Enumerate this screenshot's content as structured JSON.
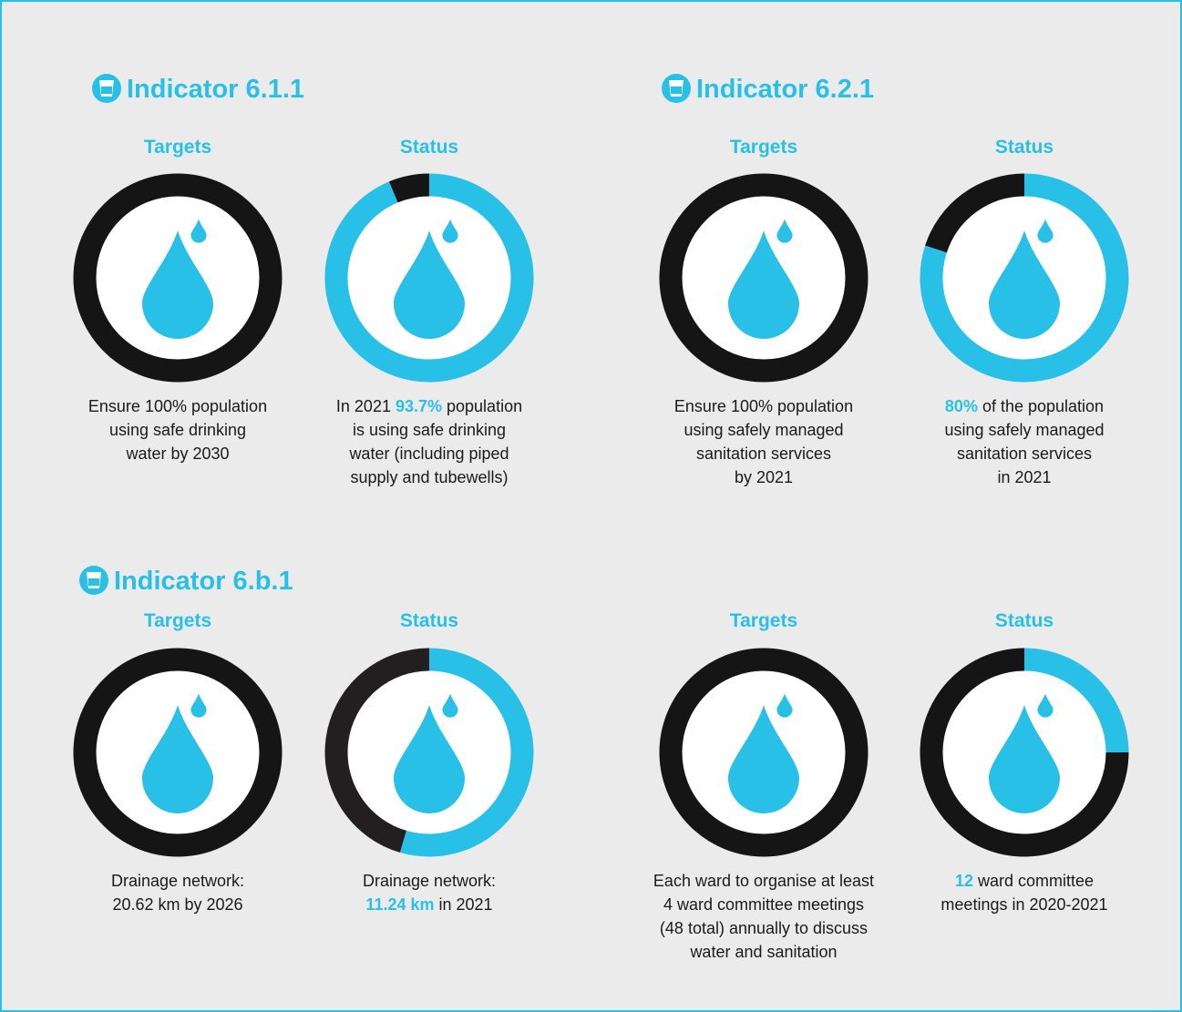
{
  "panels": [
    {
      "heading": "Indicator 6.1.1",
      "target": {
        "title": "Targets",
        "lines": [
          [
            "Ensure ",
            {
              "value": 100,
              "label": "100%"
            },
            " population"
          ],
          [
            "using safe drinking"
          ],
          [
            "water by 2030"
          ]
        ]
      },
      "status": {
        "title": "Status",
        "lines": [
          [
            "In 2021 ",
            {
              "value": 93.7,
              "label": "93.7%"
            },
            " population"
          ],
          [
            "is using safe drinking"
          ],
          [
            "water (including piped"
          ],
          [
            "supply and tubewells)"
          ]
        ]
      }
    },
    {
      "heading": "Indicator 6.2.1",
      "target": {
        "title": "Targets",
        "lines": [
          [
            "Ensure ",
            {
              "value": 100,
              "label": "100%"
            },
            " population"
          ],
          [
            "using safely managed"
          ],
          [
            "sanitation services"
          ],
          [
            "by 2021"
          ]
        ]
      },
      "status": {
        "title": "Status",
        "lines": [
          [
            {
              "value": 80,
              "label": "80%"
            },
            " of the population"
          ],
          [
            "using safely managed"
          ],
          [
            "sanitation services"
          ],
          [
            "in 2021"
          ]
        ]
      }
    },
    {
      "heading": "Indicator 6.b.1",
      "target": {
        "title": "Targets",
        "lines": [
          [
            "Drainage network:"
          ],
          [
            {
              "value": 20.62,
              "label": "20.62 km"
            },
            " by 2026"
          ]
        ]
      },
      "status": {
        "title": "Status",
        "lines": [
          [
            "Drainage network:"
          ],
          [
            {
              "value": 11.24,
              "label": "11.24 km"
            },
            " in 2021"
          ]
        ]
      }
    },
    {
      "target": {
        "title": "Targets",
        "lines": [
          [
            "Each ward to organise at least"
          ],
          [
            "4 ward committee meetings"
          ],
          [
            "(",
            {
              "value": 48,
              "label": "48"
            },
            " total) annually to discuss"
          ],
          [
            "water and sanitation"
          ]
        ]
      },
      "status": {
        "title": "Status",
        "lines": [
          [
            {
              "value": 12,
              "label": "12"
            },
            " ward committee"
          ],
          [
            "meetings in 2020-2021"
          ]
        ]
      }
    }
  ]
}
